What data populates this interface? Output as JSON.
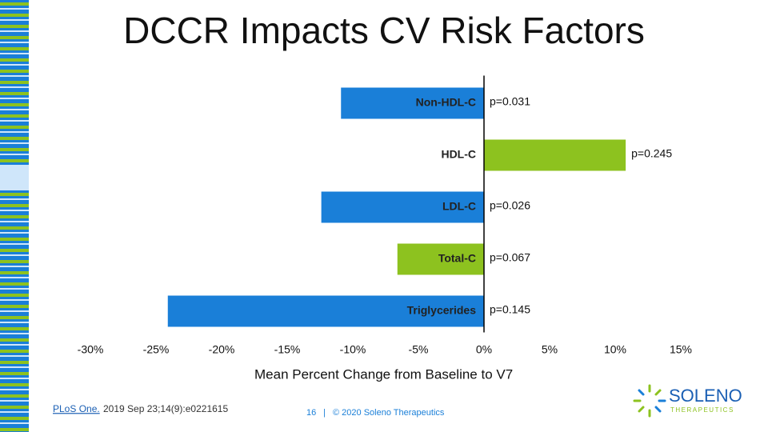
{
  "chart_data": {
    "type": "bar",
    "orientation": "horizontal",
    "title": "DCCR Impacts CV Risk Factors",
    "categories": [
      "Non-HDL-C",
      "HDL-C",
      "LDL-C",
      "Total-C",
      "Triglycerides"
    ],
    "values": [
      -10.9,
      10.8,
      -12.4,
      -6.6,
      -24.1
    ],
    "colors": [
      "#1a7fd8",
      "#8dc21f",
      "#1a7fd8",
      "#8dc21f",
      "#1a7fd8"
    ],
    "value_annotations": [
      "p=0.031",
      "p=0.245",
      "p=0.026",
      "p=0.067",
      "p=0.145"
    ],
    "xlabel": "Mean Percent Change from Baseline to V7",
    "xlim": [
      -30,
      15
    ],
    "xticks": [
      {
        "value": -30,
        "label": "-30%"
      },
      {
        "value": -25,
        "label": "-25%"
      },
      {
        "value": -20,
        "label": "-20%"
      },
      {
        "value": -15,
        "label": "-15%"
      },
      {
        "value": -10,
        "label": "-10%"
      },
      {
        "value": -5,
        "label": "-5%"
      },
      {
        "value": 0,
        "label": "0%"
      },
      {
        "value": 5,
        "label": "5%"
      },
      {
        "value": 10,
        "label": "10%"
      },
      {
        "value": 15,
        "label": "15%"
      }
    ]
  },
  "footer": {
    "citation_link": "PLoS One.",
    "citation": "2019 Sep 23;14(9):e0221615",
    "page_number": "16",
    "separator": "|",
    "copyright": "© 2020 Soleno Therapeutics"
  },
  "logo": {
    "name": "SOLENO",
    "tagline": "THERAPEUTICS"
  }
}
